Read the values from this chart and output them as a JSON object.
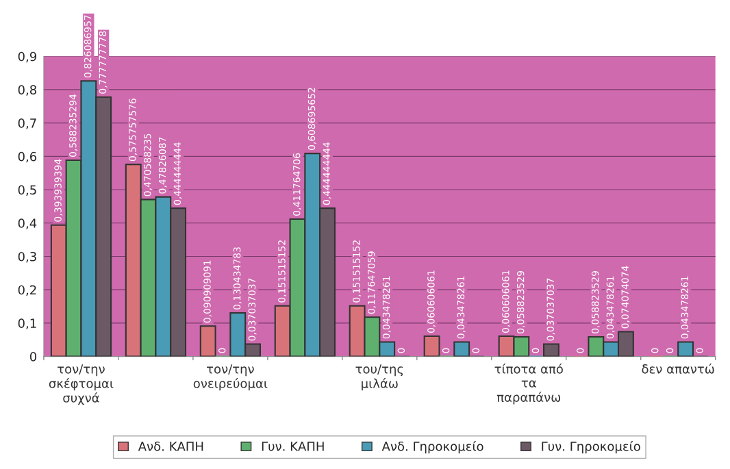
{
  "chart_data": {
    "type": "bar",
    "categories": [
      "τον/την\nσκέφτομαι\nσυχνά",
      null,
      "τον/την\nονειρεύομαι",
      null,
      "του/της\nμιλάω",
      null,
      "τίποτα από\nτα\nπαραπάνω",
      null,
      "δεν απαντώ"
    ],
    "series": [
      {
        "name": "Ανδ. ΚΑΠΗ",
        "color": "#d9737a",
        "values": [
          0.393939394,
          0.575757576,
          0.090909091,
          0.151515152,
          0.151515152,
          0.060606061,
          0.060606061,
          0,
          0
        ],
        "value_labels": [
          "0,393939394",
          "0,575757576",
          "0,090909091",
          "0,151515152",
          "0,151515152",
          "0,060606061",
          "0,060606061",
          "0",
          "0"
        ]
      },
      {
        "name": "Γυν. ΚΑΠΗ",
        "color": "#5fb06f",
        "values": [
          0.588235294,
          0.470588235,
          0,
          0.411764706,
          0.117647059,
          0,
          0.058823529,
          0.058823529,
          0
        ],
        "value_labels": [
          "0,588235294",
          "0,470588235",
          "0",
          "0,411764706",
          "0,117647059",
          "0",
          "0,058823529",
          "0,058823529",
          "0"
        ]
      },
      {
        "name": "Ανδ. Γηροκομείο",
        "color": "#4a9bb5",
        "values": [
          0.826086957,
          0.47826087,
          0.130434783,
          0.608695652,
          0.043478261,
          0.043478261,
          0,
          0.043478261,
          0.043478261
        ],
        "value_labels": [
          "0,826086957",
          "0,47826087",
          "0,130434783",
          "0,608695652",
          "0,043478261",
          "0,043478261",
          "0",
          "0,043478261",
          "0,043478261"
        ]
      },
      {
        "name": "Γυν. Γηροκομείο",
        "color": "#6b5a66",
        "values": [
          0.777777778,
          0.444444444,
          0.037037037,
          0.444444444,
          0,
          0,
          0.037037037,
          0.074074074,
          0
        ],
        "value_labels": [
          "0,777777778",
          "0,444444444",
          "0,037037037",
          "0,444444444",
          "0",
          "0",
          "0,037037037",
          "0,074074074",
          "0"
        ]
      }
    ],
    "ylim": [
      0,
      0.9
    ],
    "yticks": [
      {
        "value": 0,
        "label": "0"
      },
      {
        "value": 0.1,
        "label": "0,1"
      },
      {
        "value": 0.2,
        "label": "0,2"
      },
      {
        "value": 0.3,
        "label": "0,3"
      },
      {
        "value": 0.4,
        "label": "0,4"
      },
      {
        "value": 0.5,
        "label": "0,5"
      },
      {
        "value": 0.6,
        "label": "0,6"
      },
      {
        "value": 0.7,
        "label": "0,7"
      },
      {
        "value": 0.8,
        "label": "0,8"
      },
      {
        "value": 0.9,
        "label": "0,9"
      }
    ],
    "grid": "y",
    "legend": "bottom"
  }
}
